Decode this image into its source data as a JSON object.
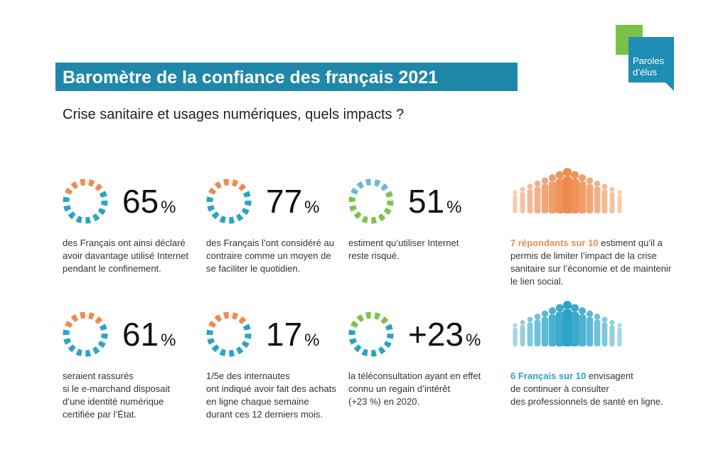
{
  "header": {
    "title": "Baromètre de la confiance des français 2021",
    "subtitle": "Crise sanitaire et usages numériques, quels impacts ?"
  },
  "logo": {
    "lines": [
      "Paroles",
      "d’élus"
    ]
  },
  "stats": [
    {
      "value": "65",
      "unit": "%",
      "colors": [
        "#ee8a4c",
        "#2aa3c7"
      ],
      "lines": [
        "des Français ont ainsi déclaré",
        "avoir davantage utilisé Internet",
        "pendant le confinement."
      ]
    },
    {
      "value": "77",
      "unit": "%",
      "colors": [
        "#ee8a4c",
        "#2aa3c7"
      ],
      "lines": [
        "des Français l’ont considéré au",
        "contraire comme un moyen de",
        "se faciliter le quotidien."
      ]
    },
    {
      "value": "51",
      "unit": "%",
      "colors": [
        "#6bb8d6",
        "#7cc24a"
      ],
      "lines": [
        "estiment qu’utiliser Internet",
        "reste risqué."
      ]
    },
    {
      "value": "61",
      "unit": "%",
      "colors": [
        "#ee8a4c",
        "#2aa3c7"
      ],
      "lines": [
        "seraient rassurés",
        "si le e-marchand disposait",
        "d’une identité numérique",
        "certifiée par l’État."
      ]
    },
    {
      "value": "17",
      "unit": "%",
      "colors": [
        "#ee8a4c",
        "#2aa3c7"
      ],
      "lines": [
        "1/5e des internautes",
        "ont indiqué avoir fait des achats",
        "en ligne chaque semaine",
        "durant ces 12 derniers mois."
      ]
    },
    {
      "value": "+23",
      "unit": "%",
      "colors": [
        "#7cc24a",
        "#2aa3c7"
      ],
      "lines": [
        "la téléconsultation ayant en effet",
        "connu un regain d’intérêt",
        "(+23 %) en 2020."
      ]
    }
  ],
  "facts": [
    {
      "highlight": "7 répondants sur 10",
      "color": "#ee8a4c",
      "lines": [
        " estiment qu’il a",
        "permis de limiter l’impact de la crise",
        "sanitaire sur l’économie et de maintenir",
        "le lien social."
      ]
    },
    {
      "highlight": "6 Français sur 10",
      "color": "#2aa3c7",
      "lines": [
        " envisagent",
        "de continuer à consulter",
        "des professionnels de santé en ligne."
      ]
    }
  ]
}
